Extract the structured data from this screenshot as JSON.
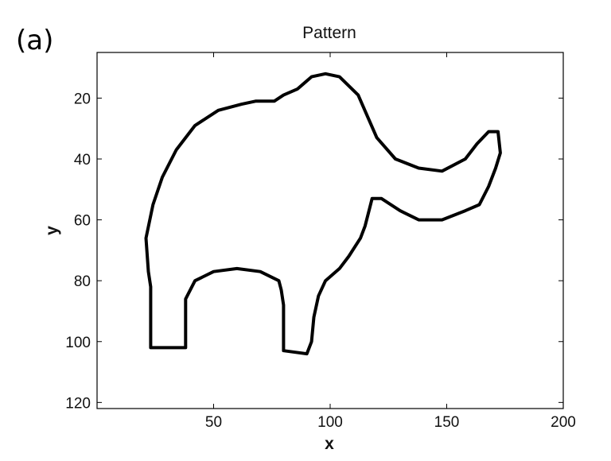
{
  "panel_label": "(a)",
  "chart_data": {
    "type": "line",
    "title": "Pattern",
    "xlabel": "x",
    "ylabel": "y",
    "xlim": [
      0,
      200
    ],
    "ylim": [
      122,
      5
    ],
    "y_axis_inverted": true,
    "grid": false,
    "x_ticks": [
      50,
      100,
      150,
      200
    ],
    "y_ticks": [
      20,
      40,
      60,
      80,
      100,
      120
    ],
    "x_tick_labels": [
      "50",
      "100",
      "150",
      "200"
    ],
    "y_tick_labels": [
      "20",
      "40",
      "60",
      "80",
      "100",
      "120"
    ],
    "line_color": "#000000",
    "series": [
      {
        "closed": true,
        "points": [
          [
            23,
            102
          ],
          [
            38,
            102
          ],
          [
            38,
            86
          ],
          [
            42,
            80
          ],
          [
            50,
            77
          ],
          [
            60,
            76
          ],
          [
            70,
            77
          ],
          [
            78,
            80
          ],
          [
            79,
            83
          ],
          [
            80,
            88
          ],
          [
            80,
            103
          ],
          [
            90,
            104
          ],
          [
            92,
            100
          ],
          [
            93,
            92
          ],
          [
            95,
            85
          ],
          [
            98,
            80
          ],
          [
            104,
            76
          ],
          [
            108,
            72
          ],
          [
            113,
            66
          ],
          [
            115,
            62
          ],
          [
            117,
            56
          ],
          [
            118,
            53
          ],
          [
            122,
            53
          ],
          [
            130,
            57
          ],
          [
            138,
            60
          ],
          [
            148,
            60
          ],
          [
            158,
            57
          ],
          [
            164,
            55
          ],
          [
            168,
            49
          ],
          [
            171,
            43
          ],
          [
            173,
            38
          ],
          [
            172,
            31
          ],
          [
            168,
            31
          ],
          [
            163,
            35
          ],
          [
            158,
            40
          ],
          [
            148,
            44
          ],
          [
            138,
            43
          ],
          [
            128,
            40
          ],
          [
            120,
            33
          ],
          [
            116,
            26
          ],
          [
            112,
            19
          ],
          [
            104,
            13
          ],
          [
            98,
            12
          ],
          [
            92,
            13
          ],
          [
            86,
            17
          ],
          [
            80,
            19
          ],
          [
            76,
            21
          ],
          [
            68,
            21
          ],
          [
            62,
            22
          ],
          [
            52,
            24
          ],
          [
            42,
            29
          ],
          [
            34,
            37
          ],
          [
            28,
            46
          ],
          [
            24,
            55
          ],
          [
            21,
            66
          ],
          [
            22,
            77
          ],
          [
            23,
            82
          ],
          [
            23,
            102
          ]
        ]
      }
    ]
  }
}
